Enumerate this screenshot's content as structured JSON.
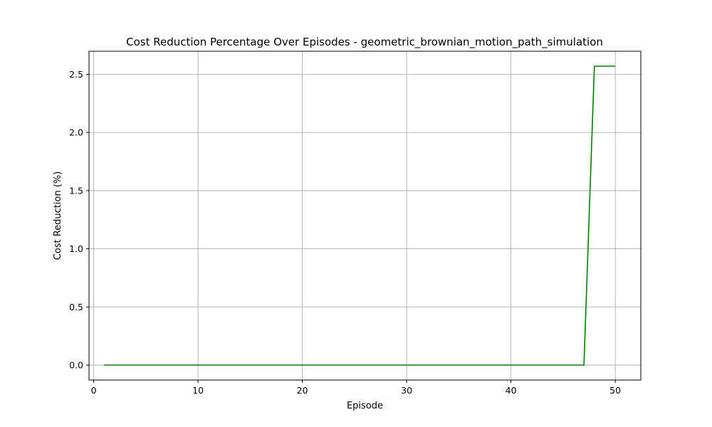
{
  "chart_data": {
    "type": "line",
    "title": "Cost Reduction Percentage Over Episodes - geometric_brownian_motion_path_simulation",
    "xlabel": "Episode",
    "ylabel": "Cost Reduction (%)",
    "xlim": [
      -0.45,
      52.45
    ],
    "ylim": [
      -0.1285,
      2.6985
    ],
    "xticks": [
      0,
      10,
      20,
      30,
      40,
      50
    ],
    "yticks": [
      0.0,
      0.5,
      1.0,
      1.5,
      2.0,
      2.5
    ],
    "xtick_labels": [
      "0",
      "10",
      "20",
      "30",
      "40",
      "50"
    ],
    "ytick_labels": [
      "0.0",
      "0.5",
      "1.0",
      "1.5",
      "2.0",
      "2.5"
    ],
    "grid": true,
    "line_color": "#008000",
    "series": [
      {
        "x": [
          1,
          2,
          3,
          4,
          5,
          6,
          7,
          8,
          9,
          10,
          11,
          12,
          13,
          14,
          15,
          16,
          17,
          18,
          19,
          20,
          21,
          22,
          23,
          24,
          25,
          26,
          27,
          28,
          29,
          30,
          31,
          32,
          33,
          34,
          35,
          36,
          37,
          38,
          39,
          40,
          41,
          42,
          43,
          44,
          45,
          46,
          47,
          48,
          49,
          50
        ],
        "values": [
          0,
          0,
          0,
          0,
          0,
          0,
          0,
          0,
          0,
          0,
          0,
          0,
          0,
          0,
          0,
          0,
          0,
          0,
          0,
          0,
          0,
          0,
          0,
          0,
          0,
          0,
          0,
          0,
          0,
          0,
          0,
          0,
          0,
          0,
          0,
          0,
          0,
          0,
          0,
          0,
          0,
          0,
          0,
          0,
          0,
          0,
          0,
          2.57,
          2.57,
          2.57
        ]
      }
    ]
  }
}
